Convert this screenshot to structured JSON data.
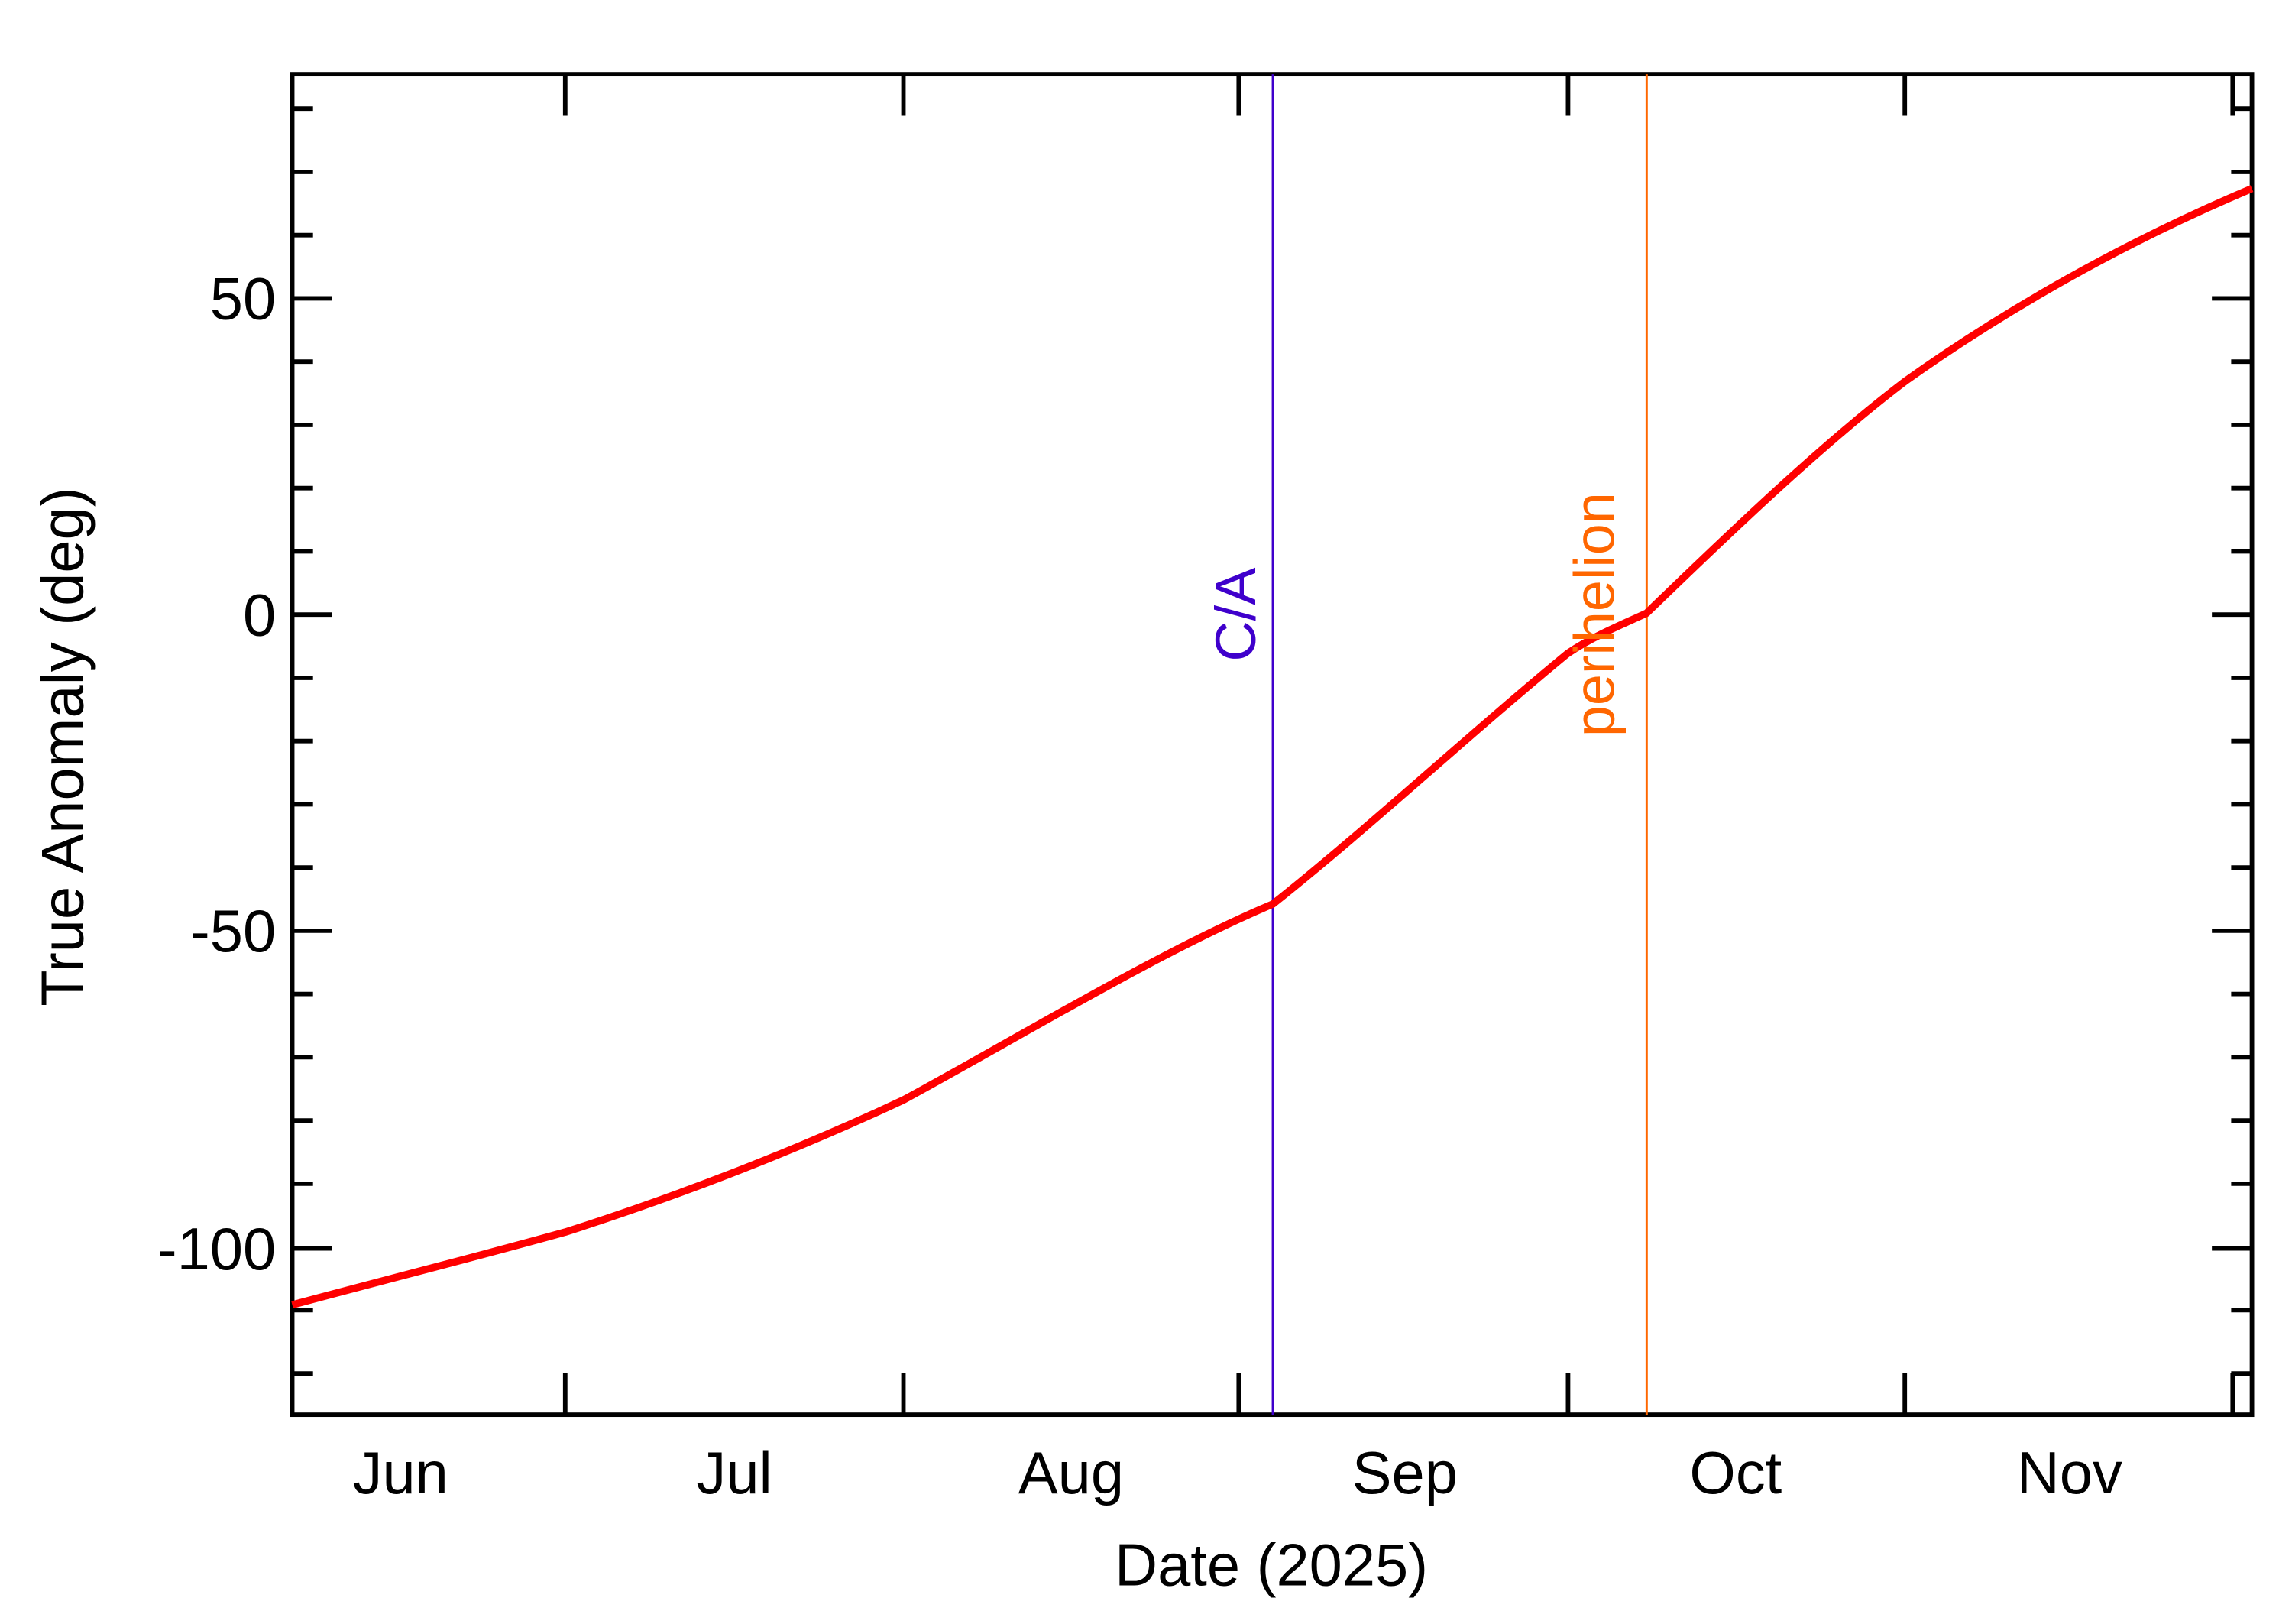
{
  "chart_data": {
    "type": "line",
    "title": "",
    "xlabel": "Date (2025)",
    "ylabel": "True Anomaly (deg)",
    "ylim": [
      -126,
      85
    ],
    "xlim": [
      "2025-06-06",
      "2025-12-03"
    ],
    "grid": false,
    "legend": null,
    "x_tick_labels": [
      "Jun",
      "Jul",
      "Aug",
      "Sep",
      "Oct",
      "Nov"
    ],
    "y_tick_labels": [
      "50",
      "0",
      "-50",
      "-100"
    ],
    "y_ticks": [
      50,
      0,
      -50,
      -100
    ],
    "series": [
      {
        "name": "True Anomaly",
        "color": "#ff0000",
        "x": [
          "2025-06-06",
          "2025-06-20",
          "2025-07-01",
          "2025-07-10",
          "2025-07-20",
          "2025-08-01",
          "2025-08-13",
          "2025-08-24",
          "2025-09-04",
          "2025-09-12",
          "2025-09-20",
          "2025-09-27",
          "2025-10-01",
          "2025-10-08",
          "2025-10-16",
          "2025-10-25",
          "2025-11-01",
          "2025-11-10",
          "2025-11-19",
          "2025-12-01",
          "2025-12-03"
        ],
        "values": [
          -109.3,
          -103.2,
          -97.7,
          -92.5,
          -85.5,
          -76.5,
          -65.0,
          -53.0,
          -45.5,
          -35.0,
          -23.7,
          -12.0,
          -6.1,
          0.2,
          13.8,
          27.9,
          36.4,
          47.5,
          57.3,
          66.2,
          67.4
        ]
      }
    ],
    "annotations": [
      {
        "label": "C/A",
        "date": "2025-09-04",
        "color": "#3f00cc",
        "type": "vline"
      },
      {
        "label": "perihelion",
        "date": "2025-10-08",
        "color": "#ff6600",
        "type": "vline"
      }
    ]
  },
  "axes": {
    "xlabel": "Date (2025)",
    "ylabel": "True Anomaly (deg)",
    "x_ticks": [
      {
        "label": "Jun",
        "x": 270
      },
      {
        "label": "Jul",
        "x": 495
      },
      {
        "label": "Aug",
        "x": 722
      },
      {
        "label": "Sep",
        "x": 947
      },
      {
        "label": "Oct",
        "x": 1170
      },
      {
        "label": "Nov",
        "x": 1395
      }
    ],
    "y_ticks": [
      {
        "label": "50",
        "y": 201
      },
      {
        "label": "0",
        "y": 414
      },
      {
        "label": "-50",
        "y": 627
      },
      {
        "label": "-100",
        "y": 841
      }
    ]
  },
  "markers": {
    "ca_label": "C/A",
    "perihelion_label": "perihelion"
  },
  "colors": {
    "curve": "#ff0000",
    "ca": "#3f00cc",
    "perihelion": "#ff6600",
    "axis": "#000000"
  }
}
